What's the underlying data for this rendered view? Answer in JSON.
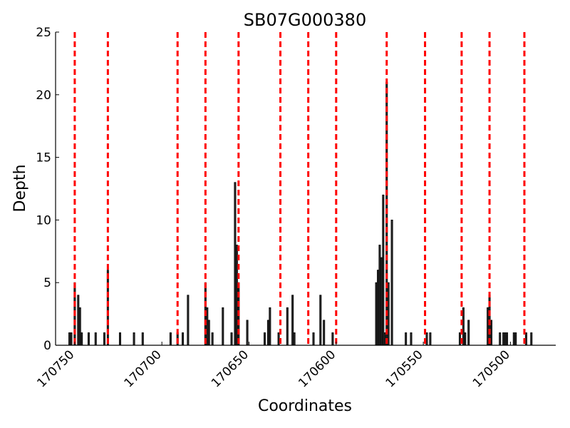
{
  "chart_data": {
    "type": "bar",
    "title": "SB07G000380",
    "xlabel": "Coordinates",
    "ylabel": "Depth",
    "xlim": [
      170761,
      170474
    ],
    "ylim": [
      0,
      25
    ],
    "x_reversed": true,
    "grid": false,
    "legend": "none",
    "yticks": [
      0,
      5,
      10,
      15,
      20,
      25
    ],
    "xticks": [
      170750,
      170700,
      170650,
      170600,
      170550,
      170500
    ],
    "bar_color": "#2b2b2b",
    "bar_edge_color": "#000000",
    "marker_color": "#ff0000",
    "bars": [
      {
        "x": 170753,
        "y": 1
      },
      {
        "x": 170752,
        "y": 1
      },
      {
        "x": 170750,
        "y": 5
      },
      {
        "x": 170748,
        "y": 4
      },
      {
        "x": 170747,
        "y": 3
      },
      {
        "x": 170746,
        "y": 1
      },
      {
        "x": 170742,
        "y": 1
      },
      {
        "x": 170738,
        "y": 1
      },
      {
        "x": 170733,
        "y": 1
      },
      {
        "x": 170731,
        "y": 6
      },
      {
        "x": 170724,
        "y": 1
      },
      {
        "x": 170716,
        "y": 1
      },
      {
        "x": 170711,
        "y": 1
      },
      {
        "x": 170695,
        "y": 1
      },
      {
        "x": 170691,
        "y": 1
      },
      {
        "x": 170688,
        "y": 1
      },
      {
        "x": 170685,
        "y": 4
      },
      {
        "x": 170675,
        "y": 5
      },
      {
        "x": 170674,
        "y": 3
      },
      {
        "x": 170673,
        "y": 2
      },
      {
        "x": 170671,
        "y": 1
      },
      {
        "x": 170665,
        "y": 3
      },
      {
        "x": 170660,
        "y": 1
      },
      {
        "x": 170658,
        "y": 13
      },
      {
        "x": 170657,
        "y": 8
      },
      {
        "x": 170656,
        "y": 5
      },
      {
        "x": 170651,
        "y": 2
      },
      {
        "x": 170641,
        "y": 1
      },
      {
        "x": 170639,
        "y": 2
      },
      {
        "x": 170638,
        "y": 3
      },
      {
        "x": 170633,
        "y": 1
      },
      {
        "x": 170628,
        "y": 3
      },
      {
        "x": 170625,
        "y": 4
      },
      {
        "x": 170624,
        "y": 1
      },
      {
        "x": 170613,
        "y": 1
      },
      {
        "x": 170609,
        "y": 4
      },
      {
        "x": 170607,
        "y": 2
      },
      {
        "x": 170602,
        "y": 1
      },
      {
        "x": 170577,
        "y": 5
      },
      {
        "x": 170576,
        "y": 6
      },
      {
        "x": 170575,
        "y": 8
      },
      {
        "x": 170574,
        "y": 7
      },
      {
        "x": 170573,
        "y": 12
      },
      {
        "x": 170572,
        "y": 1
      },
      {
        "x": 170571,
        "y": 21
      },
      {
        "x": 170570,
        "y": 5
      },
      {
        "x": 170568,
        "y": 10
      },
      {
        "x": 170560,
        "y": 1
      },
      {
        "x": 170557,
        "y": 1
      },
      {
        "x": 170548,
        "y": 1
      },
      {
        "x": 170546,
        "y": 1
      },
      {
        "x": 170529,
        "y": 1
      },
      {
        "x": 170527,
        "y": 3
      },
      {
        "x": 170526,
        "y": 1
      },
      {
        "x": 170524,
        "y": 2
      },
      {
        "x": 170513,
        "y": 3
      },
      {
        "x": 170512,
        "y": 4
      },
      {
        "x": 170511,
        "y": 2
      },
      {
        "x": 170506,
        "y": 1
      },
      {
        "x": 170504,
        "y": 1
      },
      {
        "x": 170503,
        "y": 1
      },
      {
        "x": 170502,
        "y": 1
      },
      {
        "x": 170498,
        "y": 1
      },
      {
        "x": 170497,
        "y": 1
      },
      {
        "x": 170491,
        "y": 1
      },
      {
        "x": 170488,
        "y": 1
      }
    ],
    "markers": [
      170750,
      170731,
      170691,
      170675,
      170656,
      170632,
      170616,
      170600,
      170571,
      170549,
      170528,
      170512,
      170492
    ]
  }
}
